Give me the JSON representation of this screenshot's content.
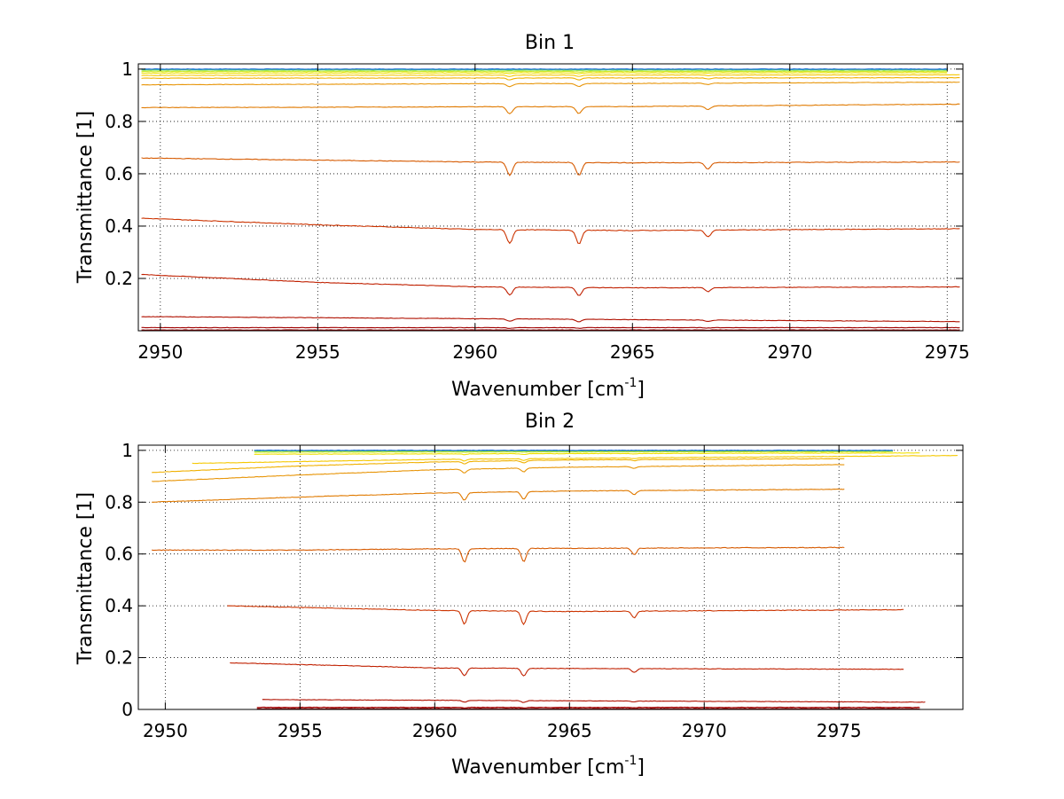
{
  "chart_data": [
    {
      "type": "line",
      "title": "Bin 1",
      "xlabel": "Wavenumber [cm",
      "xlabel_sup": "-1",
      "xlabel_tail": "]",
      "ylabel": "Transmittance [1]",
      "xlim": [
        2949.3,
        2975.5
      ],
      "ylim": [
        0.0,
        1.02
      ],
      "xticks": [
        2950,
        2955,
        2960,
        2965,
        2970,
        2975
      ],
      "xtick_labels": [
        "2950",
        "2955",
        "2960",
        "2965",
        "2970",
        "2975"
      ],
      "yticks": [
        0.2,
        0.4,
        0.6,
        0.8,
        1
      ],
      "ytick_labels": [
        "0.2",
        "0.4",
        "0.6",
        "0.8",
        "1"
      ],
      "grid": true,
      "absorption_lines": [
        2961.1,
        2963.3,
        2967.4
      ],
      "series": [
        {
          "color": "#8b0000",
          "x": [
            2949.4,
            2975.4
          ],
          "y": [
            0.003,
            0.003
          ]
        },
        {
          "color": "#a00000",
          "x": [
            2949.4,
            2975.4
          ],
          "y": [
            0.012,
            0.012
          ]
        },
        {
          "color": "#b01000",
          "x": [
            2949.4,
            2975.4
          ],
          "y": [
            0.054,
            0.035
          ]
        },
        {
          "color": "#c02000",
          "x": [
            2949.4,
            2955,
            2960,
            2965,
            2975.4
          ],
          "y": [
            0.215,
            0.185,
            0.168,
            0.164,
            0.168
          ]
        },
        {
          "color": "#cc3300",
          "x": [
            2949.4,
            2955,
            2960,
            2965,
            2975.4
          ],
          "y": [
            0.43,
            0.405,
            0.387,
            0.383,
            0.39
          ]
        },
        {
          "color": "#d65a00",
          "x": [
            2949.4,
            2955,
            2960,
            2965,
            2975.4
          ],
          "y": [
            0.66,
            0.652,
            0.645,
            0.642,
            0.645
          ]
        },
        {
          "color": "#e07a00",
          "x": [
            2949.4,
            2955,
            2960,
            2965,
            2975.4
          ],
          "y": [
            0.853,
            0.854,
            0.856,
            0.857,
            0.866
          ]
        },
        {
          "color": "#e8960a",
          "x": [
            2949.4,
            2955,
            2960,
            2965,
            2975.4
          ],
          "y": [
            0.94,
            0.942,
            0.944,
            0.945,
            0.95
          ]
        },
        {
          "color": "#f0b000",
          "x": [
            2949.4,
            2975.4
          ],
          "y": [
            0.965,
            0.967
          ]
        },
        {
          "color": "#f5c800",
          "x": [
            2949.4,
            2975.4
          ],
          "y": [
            0.976,
            0.978
          ]
        },
        {
          "color": "#f0e000",
          "x": [
            2949.4,
            2975.0
          ],
          "y": [
            0.985,
            0.986
          ]
        },
        {
          "color": "#c8e820",
          "x": [
            2949.4,
            2975.0
          ],
          "y": [
            0.991,
            0.991
          ]
        },
        {
          "color": "#80e040",
          "x": [
            2949.4,
            2975.0
          ],
          "y": [
            0.996,
            0.996
          ]
        },
        {
          "color": "#30c0c0",
          "x": [
            2949.4,
            2975.0
          ],
          "y": [
            0.999,
            0.999
          ]
        },
        {
          "color": "#1060d0",
          "x": [
            2949.4,
            2975.0
          ],
          "y": [
            1.0,
            1.0
          ]
        }
      ]
    },
    {
      "type": "line",
      "title": "Bin 2",
      "xlabel": "Wavenumber [cm",
      "xlabel_sup": "-1",
      "xlabel_tail": "]",
      "ylabel": "Transmittance [1]",
      "xlim": [
        2949.0,
        2979.6
      ],
      "ylim": [
        0.0,
        1.02
      ],
      "xticks": [
        2950,
        2955,
        2960,
        2965,
        2970,
        2975
      ],
      "xtick_labels": [
        "2950",
        "2955",
        "2960",
        "2965",
        "2970",
        "2975"
      ],
      "yticks": [
        0,
        0.2,
        0.4,
        0.6,
        0.8,
        1
      ],
      "ytick_labels": [
        "0",
        "0.2",
        "0.4",
        "0.6",
        "0.8",
        "1"
      ],
      "grid": true,
      "absorption_lines": [
        2961.1,
        2963.3,
        2967.4
      ],
      "series": [
        {
          "color": "#8b0000",
          "x": [
            2953.4,
            2978.0
          ],
          "y": [
            0.003,
            0.003
          ]
        },
        {
          "color": "#a00000",
          "x": [
            2953.4,
            2978.0
          ],
          "y": [
            0.008,
            0.008
          ]
        },
        {
          "color": "#b01000",
          "x": [
            2953.6,
            2978.2
          ],
          "y": [
            0.038,
            0.028
          ]
        },
        {
          "color": "#c02000",
          "x": [
            2952.4,
            2960,
            2965,
            2977.4
          ],
          "y": [
            0.18,
            0.16,
            0.158,
            0.155
          ]
        },
        {
          "color": "#cc3300",
          "x": [
            2952.3,
            2960,
            2965,
            2977.4
          ],
          "y": [
            0.4,
            0.382,
            0.378,
            0.385
          ]
        },
        {
          "color": "#d65a00",
          "x": [
            2949.5,
            2955,
            2960,
            2965,
            2975.2
          ],
          "y": [
            0.615,
            0.615,
            0.62,
            0.622,
            0.625
          ]
        },
        {
          "color": "#e07a00",
          "x": [
            2949.5,
            2955,
            2960,
            2965,
            2975.2
          ],
          "y": [
            0.8,
            0.82,
            0.835,
            0.843,
            0.85
          ]
        },
        {
          "color": "#e8960a",
          "x": [
            2949.5,
            2955,
            2960,
            2965,
            2975.2
          ],
          "y": [
            0.88,
            0.905,
            0.925,
            0.935,
            0.945
          ]
        },
        {
          "color": "#f0b000",
          "x": [
            2949.5,
            2955,
            2960,
            2965,
            2975.2
          ],
          "y": [
            0.915,
            0.94,
            0.955,
            0.963,
            0.968
          ]
        },
        {
          "color": "#f5c800",
          "x": [
            2951.0,
            2960,
            2979.4
          ],
          "y": [
            0.95,
            0.965,
            0.98
          ]
        },
        {
          "color": "#f0e000",
          "x": [
            2953.3,
            2978.0
          ],
          "y": [
            0.985,
            0.99
          ]
        },
        {
          "color": "#c8e820",
          "x": [
            2953.3,
            2977.0
          ],
          "y": [
            0.993,
            0.995
          ]
        },
        {
          "color": "#80e040",
          "x": [
            2953.3,
            2977.0
          ],
          "y": [
            0.997,
            0.998
          ]
        },
        {
          "color": "#30c0c0",
          "x": [
            2953.3,
            2977.0
          ],
          "y": [
            0.999,
            0.999
          ]
        },
        {
          "color": "#1060d0",
          "x": [
            2953.3,
            2977.0
          ],
          "y": [
            1.0,
            1.0
          ]
        }
      ]
    }
  ]
}
